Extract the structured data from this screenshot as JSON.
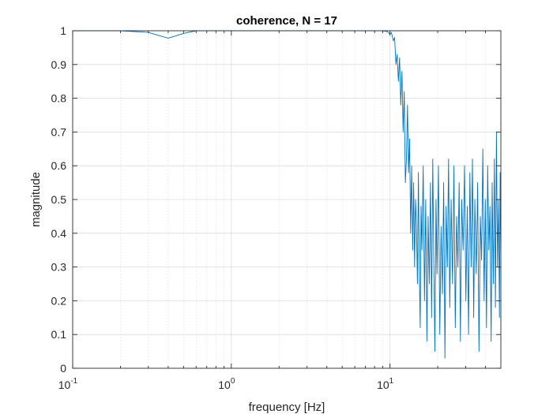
{
  "chart_data": {
    "type": "line",
    "title": "coherence, N = 17",
    "xlabel": "frequency [Hz]",
    "ylabel": "magnitude",
    "xscale": "log",
    "xlim": [
      0.1,
      50
    ],
    "ylim": [
      0,
      1
    ],
    "grid": true,
    "minor_grid_x": true,
    "x_ticks": [
      {
        "base": "10",
        "exp": "-1",
        "value": 0.1
      },
      {
        "base": "10",
        "exp": "0",
        "value": 1
      },
      {
        "base": "10",
        "exp": "1",
        "value": 10
      }
    ],
    "y_ticks": [
      "0",
      "0.1",
      "0.2",
      "0.3",
      "0.4",
      "0.5",
      "0.6",
      "0.7",
      "0.8",
      "0.9",
      "1"
    ],
    "series_color": "#0072BD",
    "series": [
      {
        "x": [
          0.1,
          0.2,
          0.3,
          0.4,
          0.5,
          0.6,
          0.8,
          1,
          2,
          4,
          6,
          8,
          9,
          9.6,
          10,
          10.2,
          10.5,
          10.7,
          10.9,
          11.1,
          11.3,
          11.5,
          11.7,
          11.9,
          12.1,
          12.3,
          12.5,
          12.7,
          12.9,
          13.1,
          13.3,
          13.5,
          13.7,
          13.9,
          14.1,
          14.3,
          14.5,
          14.7,
          14.9,
          15.1,
          15.3,
          15.5,
          15.7,
          15.9,
          16.2,
          16.5,
          16.8,
          17.1,
          17.4,
          17.7,
          18,
          18.3,
          18.6,
          18.9,
          19.2,
          19.5,
          19.8,
          20.2,
          20.6,
          21,
          21.4,
          21.8,
          22.2,
          22.6,
          23,
          23.4,
          23.8,
          24.3,
          24.8,
          25.3,
          25.8,
          26.3,
          26.8,
          27.3,
          27.8,
          28.3,
          28.9,
          29.5,
          30.1,
          30.7,
          31.3,
          31.9,
          32.5,
          33.1,
          33.7,
          34.3,
          35,
          35.7,
          36.4,
          37.1,
          37.8,
          38.5,
          39.2,
          39.9,
          40.6,
          41.3,
          42,
          42.7,
          43.4,
          44.1,
          44.8,
          45.5,
          46.2,
          46.9,
          47.6,
          48.3,
          49,
          49.5,
          50
        ],
        "y": [
          1.0,
          1.0,
          0.995,
          0.978,
          0.992,
          1.0,
          1.0,
          1.0,
          1.0,
          1.0,
          1.0,
          1.0,
          1.0,
          0.998,
          0.99,
          0.995,
          0.97,
          0.98,
          0.9,
          0.93,
          0.85,
          0.92,
          0.78,
          0.88,
          0.7,
          0.82,
          0.55,
          0.62,
          0.78,
          0.58,
          0.68,
          0.4,
          0.6,
          0.35,
          0.55,
          0.3,
          0.5,
          0.42,
          0.25,
          0.58,
          0.3,
          0.12,
          0.48,
          0.35,
          0.6,
          0.2,
          0.5,
          0.08,
          0.45,
          0.25,
          0.55,
          0.15,
          0.62,
          0.3,
          0.05,
          0.5,
          0.28,
          0.6,
          0.1,
          0.42,
          0.22,
          0.55,
          0.03,
          0.48,
          0.3,
          0.62,
          0.18,
          0.5,
          0.25,
          0.6,
          0.12,
          0.45,
          0.3,
          0.55,
          0.08,
          0.5,
          0.35,
          0.6,
          0.2,
          0.48,
          0.1,
          0.58,
          0.3,
          0.62,
          0.15,
          0.5,
          0.28,
          0.55,
          0.05,
          0.45,
          0.32,
          0.65,
          0.2,
          0.5,
          0.12,
          0.6,
          0.35,
          0.48,
          0.08,
          0.55,
          0.25,
          0.62,
          0.18,
          0.7,
          0.3,
          0.5,
          0.15,
          0.58,
          0.35
        ]
      }
    ]
  }
}
